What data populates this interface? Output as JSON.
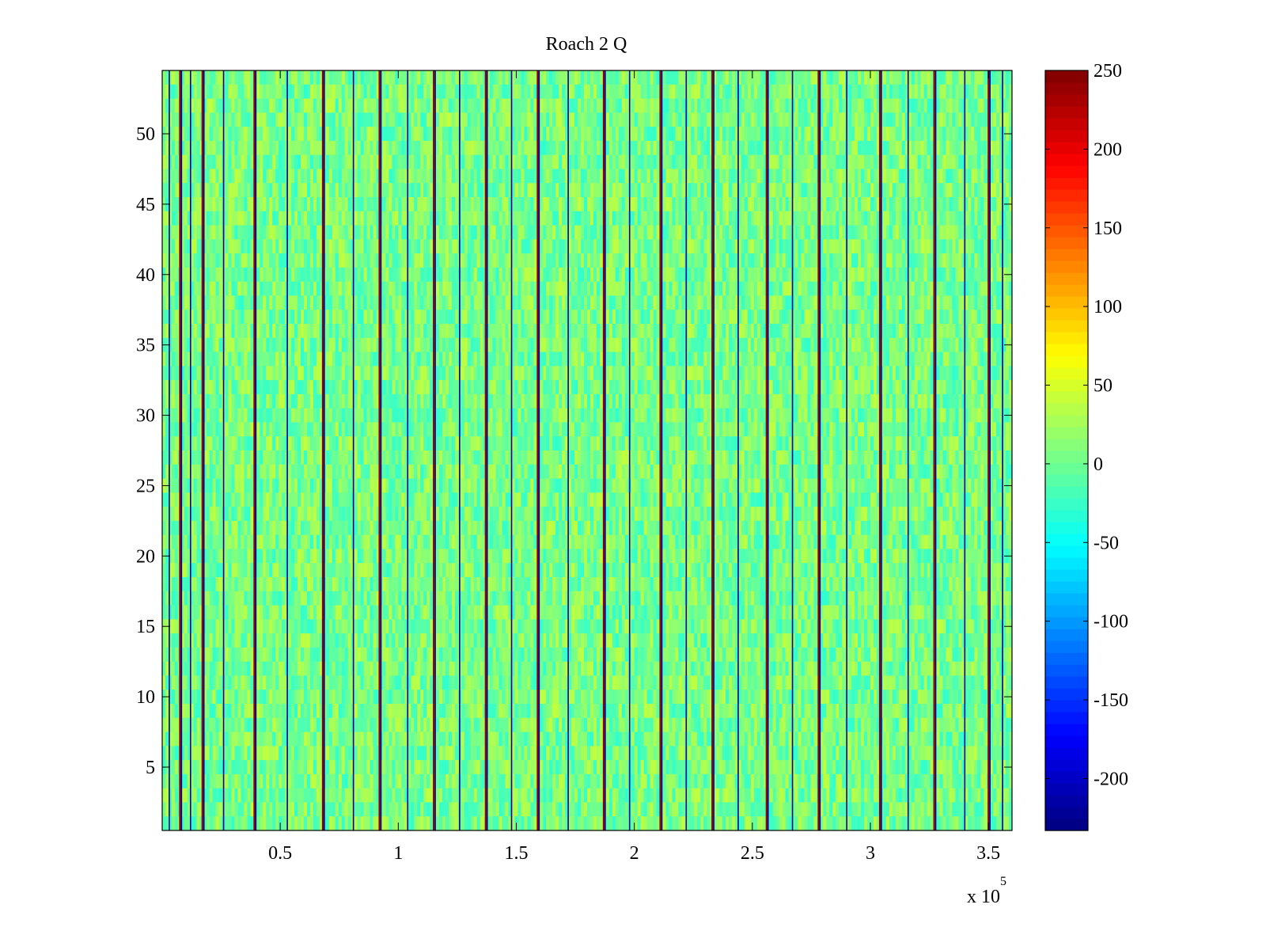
{
  "chart_data": {
    "type": "heatmap",
    "title": "Roach 2 Q",
    "xlabel": "",
    "ylabel": "",
    "xlim": [
      0,
      360000
    ],
    "ylim": [
      0.5,
      54.5
    ],
    "x_ticks": [
      50000,
      100000,
      150000,
      200000,
      250000,
      300000,
      350000
    ],
    "x_tick_labels": [
      "0.5",
      "1",
      "1.5",
      "2",
      "2.5",
      "3",
      "3.5"
    ],
    "x_exponent_label": "x 10",
    "x_exponent_power": "5",
    "y_ticks": [
      5,
      10,
      15,
      20,
      25,
      30,
      35,
      40,
      45,
      50
    ],
    "y_tick_labels": [
      "5",
      "10",
      "15",
      "20",
      "25",
      "30",
      "35",
      "40",
      "45",
      "50"
    ],
    "rows": 54,
    "colormap": "jet",
    "clim": [
      -233,
      250
    ],
    "colorbar_ticks": [
      250,
      200,
      150,
      100,
      50,
      0,
      -50,
      -100,
      -150,
      -200
    ],
    "colorbar_tick_labels": [
      "250",
      "200",
      "150",
      "100",
      "50",
      "0",
      "-50",
      "-100",
      "-150",
      "-200"
    ],
    "background_value": 5,
    "peak_columns_x": [
      7500,
      17000,
      39000,
      68000,
      92000,
      115000,
      137000,
      159000,
      187000,
      211000,
      233000,
      256000,
      278000,
      304000,
      327000,
      350000
    ],
    "peak_value": 240,
    "trough_columns_x": [
      3000,
      12000,
      26000,
      53000,
      81000,
      104000,
      126000,
      148000,
      172000,
      198000,
      222000,
      244000,
      267000,
      290000,
      316000,
      340000,
      356000
    ],
    "trough_value": -220,
    "grid": false
  }
}
